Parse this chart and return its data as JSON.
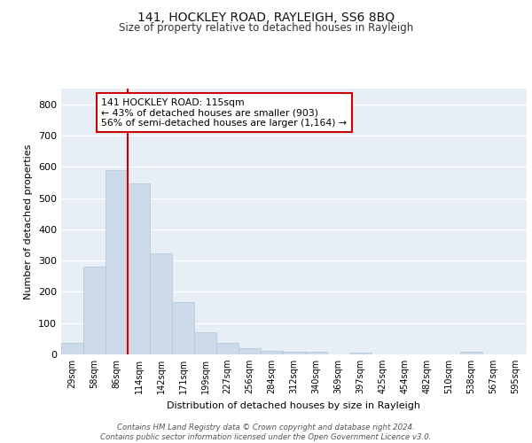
{
  "title": "141, HOCKLEY ROAD, RAYLEIGH, SS6 8BQ",
  "subtitle": "Size of property relative to detached houses in Rayleigh",
  "xlabel": "Distribution of detached houses by size in Rayleigh",
  "ylabel": "Number of detached properties",
  "categories": [
    "29sqm",
    "58sqm",
    "86sqm",
    "114sqm",
    "142sqm",
    "171sqm",
    "199sqm",
    "227sqm",
    "256sqm",
    "284sqm",
    "312sqm",
    "340sqm",
    "369sqm",
    "397sqm",
    "425sqm",
    "454sqm",
    "482sqm",
    "510sqm",
    "538sqm",
    "567sqm",
    "595sqm"
  ],
  "values": [
    38,
    280,
    590,
    548,
    322,
    168,
    70,
    38,
    20,
    11,
    8,
    8,
    0,
    7,
    0,
    0,
    0,
    0,
    8,
    0,
    0
  ],
  "bar_color": "#ccd9e8",
  "bar_edge_color": "#b0c4d8",
  "vline_color": "#cc0000",
  "annotation_text": "141 HOCKLEY ROAD: 115sqm\n← 43% of detached houses are smaller (903)\n56% of semi-detached houses are larger (1,164) →",
  "annotation_box_color": "#ffffff",
  "annotation_box_edge_color": "#cc0000",
  "ylim": [
    0,
    850
  ],
  "yticks": [
    0,
    100,
    200,
    300,
    400,
    500,
    600,
    700,
    800
  ],
  "background_color": "#e8eef5",
  "grid_color": "#ffffff",
  "fig_background": "#ffffff",
  "footer": "Contains HM Land Registry data © Crown copyright and database right 2024.\nContains public sector information licensed under the Open Government Licence v3.0."
}
